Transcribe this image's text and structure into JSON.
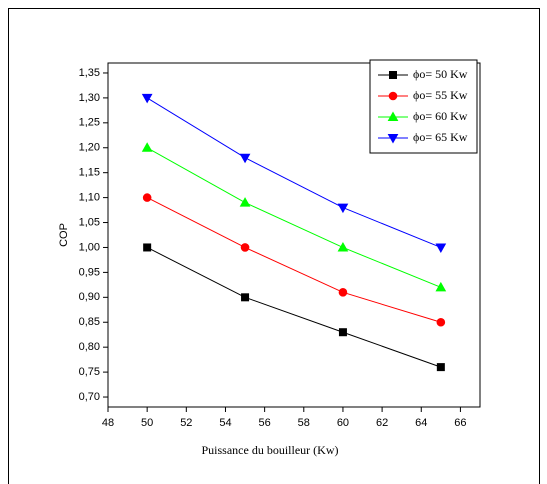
{
  "chart_data": {
    "type": "line",
    "x_label": "Puissance du bouilleur (Kw)",
    "y_label": "COP",
    "x": [
      50,
      55,
      60,
      65
    ],
    "series": [
      {
        "name": "ϕo= 50 Kw",
        "color": "#000000",
        "marker": "square",
        "values": [
          1.0,
          0.9,
          0.83,
          0.76
        ]
      },
      {
        "name": "ϕo= 55 Kw",
        "color": "#ff0000",
        "marker": "circle",
        "values": [
          1.1,
          1.0,
          0.91,
          0.85
        ]
      },
      {
        "name": "ϕo= 60 Kw",
        "color": "#00ff00",
        "marker": "triangle-up",
        "values": [
          1.2,
          1.09,
          1.0,
          0.92
        ]
      },
      {
        "name": "ϕo= 65 Kw",
        "color": "#0000ff",
        "marker": "triangle-down",
        "values": [
          1.3,
          1.18,
          1.08,
          1.0
        ]
      }
    ],
    "xlim": [
      48,
      67
    ],
    "ylim": [
      0.68,
      1.37
    ],
    "xticks": [
      48,
      50,
      52,
      54,
      56,
      58,
      60,
      62,
      64,
      66
    ],
    "yticks": [
      {
        "value": 0.7,
        "label": "0,70"
      },
      {
        "value": 0.75,
        "label": "0,75"
      },
      {
        "value": 0.8,
        "label": "0,80"
      },
      {
        "value": 0.85,
        "label": "0,85"
      },
      {
        "value": 0.9,
        "label": "0,90"
      },
      {
        "value": 0.95,
        "label": "0,95"
      },
      {
        "value": 1.0,
        "label": "1,00"
      },
      {
        "value": 1.05,
        "label": "1,05"
      },
      {
        "value": 1.1,
        "label": "1,10"
      },
      {
        "value": 1.15,
        "label": "1,15"
      },
      {
        "value": 1.2,
        "label": "1,20"
      },
      {
        "value": 1.25,
        "label": "1,25"
      },
      {
        "value": 1.3,
        "label": "1,30"
      },
      {
        "value": 1.35,
        "label": "1,35"
      }
    ],
    "legend": "upper right"
  }
}
